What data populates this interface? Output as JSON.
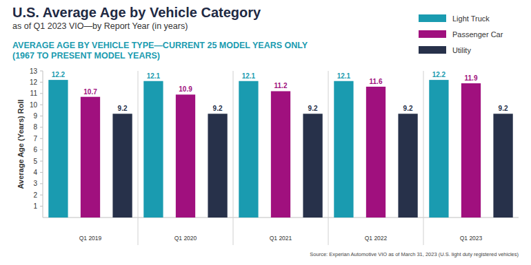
{
  "chart_data": {
    "type": "bar",
    "title": "U.S. Average Age by Vehicle Category",
    "subtitle": "as of Q1 2023 VIO—by Report Year (in years)",
    "subheading": [
      "AVERAGE AGE BY VEHICLE TYPE—CURRENT 25 MODEL YEARS ONLY",
      "(1967 TO PRESENT MODEL YEARS)"
    ],
    "source": "Source: Experian Automotive VIO as of March 31, 2023 (U.S. light duty registered vehicles)",
    "y_label": "Average Age (Years) Roll",
    "categories": [
      "Q1 2019",
      "Q1 2020",
      "Q1 2021",
      "Q1 2022",
      "Q1 2023"
    ],
    "series": [
      {
        "name": "Light Truck",
        "color": "#1a9bb0",
        "values": [
          12.2,
          12.1,
          12.1,
          12.1,
          12.2
        ]
      },
      {
        "name": "Passenger Car",
        "color": "#a0107e",
        "values": [
          10.7,
          10.9,
          11.2,
          11.6,
          11.9
        ]
      },
      {
        "name": "Utility",
        "color": "#27314a",
        "values": [
          9.2,
          9.2,
          9.2,
          9.2,
          9.2
        ]
      }
    ],
    "ylim": [
      0,
      13
    ],
    "yticks": [
      1,
      2,
      3,
      4,
      5,
      6,
      7,
      8,
      9,
      10,
      11,
      12,
      13
    ],
    "grid": false,
    "legend": "top-right",
    "data_labels": true
  }
}
